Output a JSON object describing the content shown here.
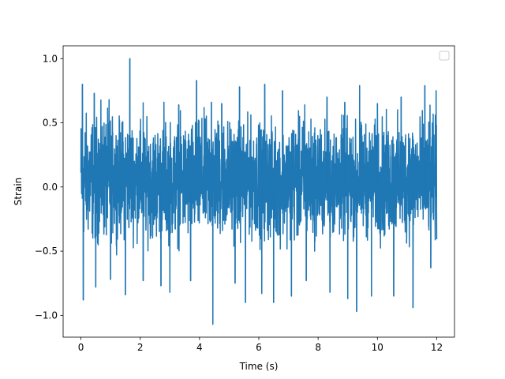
{
  "chart_data": {
    "type": "line",
    "title": "",
    "xlabel": "Time (s)",
    "ylabel": "Strain",
    "xlim": [
      -0.6,
      12.6
    ],
    "ylim": [
      -1.17,
      1.1
    ],
    "x_ticks": [
      0,
      2,
      4,
      6,
      8,
      10,
      12
    ],
    "x_tick_labels": [
      "0",
      "2",
      "4",
      "6",
      "8",
      "10",
      "12"
    ],
    "y_ticks": [
      -1.0,
      -0.5,
      0.0,
      0.5,
      1.0
    ],
    "y_tick_labels": [
      "−1.0",
      "−0.5",
      "0.0",
      "0.5",
      "1.0"
    ],
    "grid": false,
    "legend": {
      "placement": "top-right",
      "entries": []
    },
    "series": [
      {
        "color": "#1f77b4",
        "x_range": [
          0,
          12
        ],
        "band_upper": [
          0.66,
          0.62,
          0.58,
          0.6,
          0.64,
          0.6,
          0.58,
          0.62,
          0.6,
          0.58,
          0.62,
          0.64
        ],
        "band_lower": [
          -0.52,
          -0.48,
          -0.5,
          -0.52,
          -0.5,
          -0.48,
          -0.5,
          -0.52,
          -0.5,
          -0.48,
          -0.52,
          -0.5
        ],
        "peaks": [
          {
            "x": 0.05,
            "y": 0.8
          },
          {
            "x": 0.45,
            "y": 0.73
          },
          {
            "x": 0.95,
            "y": 0.68
          },
          {
            "x": 1.65,
            "y": 1.0
          },
          {
            "x": 2.1,
            "y": 0.66
          },
          {
            "x": 2.8,
            "y": 0.66
          },
          {
            "x": 3.3,
            "y": 0.64
          },
          {
            "x": 3.9,
            "y": 0.83
          },
          {
            "x": 4.4,
            "y": 0.66
          },
          {
            "x": 4.75,
            "y": 0.65
          },
          {
            "x": 5.35,
            "y": 0.78
          },
          {
            "x": 6.2,
            "y": 0.8
          },
          {
            "x": 6.8,
            "y": 0.75
          },
          {
            "x": 7.55,
            "y": 0.64
          },
          {
            "x": 8.3,
            "y": 0.7
          },
          {
            "x": 8.9,
            "y": 0.66
          },
          {
            "x": 9.4,
            "y": 0.79
          },
          {
            "x": 10.0,
            "y": 0.65
          },
          {
            "x": 10.8,
            "y": 0.7
          },
          {
            "x": 11.6,
            "y": 0.79
          },
          {
            "x": 11.98,
            "y": 0.75
          }
        ],
        "troughs": [
          {
            "x": 0.08,
            "y": -0.88
          },
          {
            "x": 0.5,
            "y": -0.78
          },
          {
            "x": 1.0,
            "y": -0.72
          },
          {
            "x": 1.5,
            "y": -0.84
          },
          {
            "x": 2.1,
            "y": -0.73
          },
          {
            "x": 2.7,
            "y": -0.77
          },
          {
            "x": 3.0,
            "y": -0.82
          },
          {
            "x": 3.7,
            "y": -0.73
          },
          {
            "x": 4.45,
            "y": -1.07
          },
          {
            "x": 5.2,
            "y": -0.75
          },
          {
            "x": 5.55,
            "y": -0.9
          },
          {
            "x": 6.1,
            "y": -0.83
          },
          {
            "x": 6.5,
            "y": -0.9
          },
          {
            "x": 7.1,
            "y": -0.85
          },
          {
            "x": 7.6,
            "y": -0.73
          },
          {
            "x": 8.4,
            "y": -0.82
          },
          {
            "x": 9.0,
            "y": -0.87
          },
          {
            "x": 9.3,
            "y": -0.97
          },
          {
            "x": 9.8,
            "y": -0.85
          },
          {
            "x": 10.55,
            "y": -0.85
          },
          {
            "x": 11.2,
            "y": -0.94
          },
          {
            "x": 11.8,
            "y": -0.63
          }
        ]
      }
    ]
  }
}
